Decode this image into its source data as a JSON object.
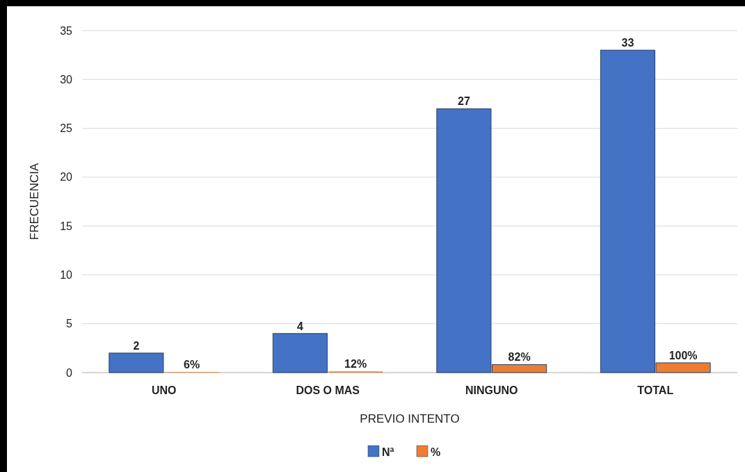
{
  "chart_data": {
    "type": "bar",
    "xlabel": "PREVIO INTENTO",
    "ylabel": "FRECUENCIA",
    "categories": [
      "UNO",
      "DOS O MAS",
      "NINGUNO",
      "TOTAL"
    ],
    "series": [
      {
        "name": "Nª",
        "color": "#4472c4",
        "values": [
          2,
          4,
          27,
          33
        ],
        "value_labels": [
          "2",
          "4",
          "27",
          "33"
        ]
      },
      {
        "name": "%",
        "color": "#ed7d31",
        "values": [
          0.06,
          0.12,
          0.82,
          1
        ],
        "value_labels": [
          "6%",
          "12%",
          "82%",
          "100%"
        ]
      }
    ],
    "ylim": [
      0,
      35
    ],
    "yticks": [
      0,
      5,
      10,
      15,
      20,
      25,
      30,
      35
    ],
    "grid": "y",
    "legend": "bottom"
  }
}
